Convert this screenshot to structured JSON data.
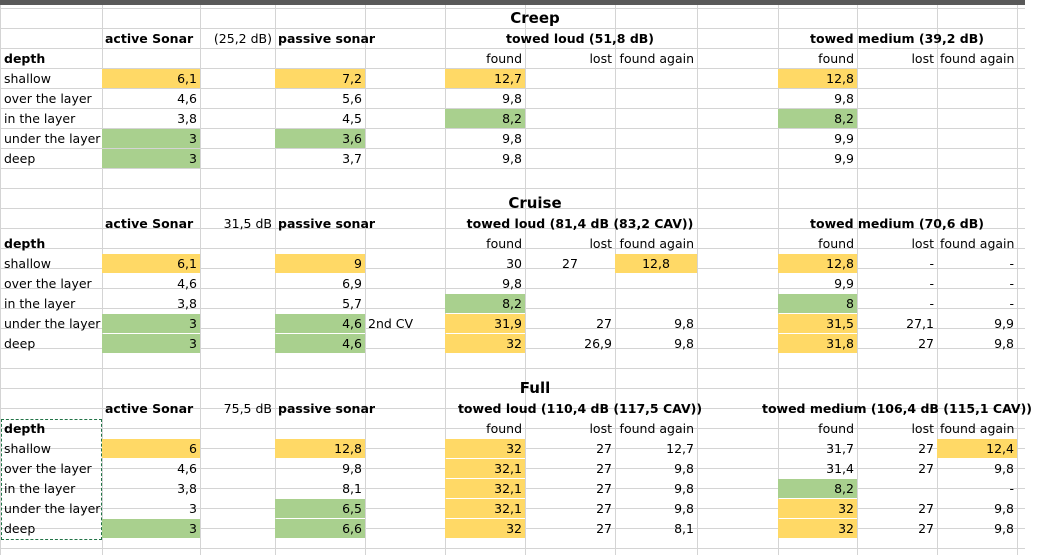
{
  "sheet": {
    "sections": [
      {
        "title": "Creep",
        "header": {
          "active": "active Sonar",
          "passive": "passive sonar",
          "note": "(25,2 dB)",
          "towed_loud": "towed loud (51,8 dB)",
          "towed_medium": "towed medium (39,2 dB)"
        },
        "sub": {
          "depth": "depth",
          "found": "found",
          "lost": "lost",
          "found_again": "found again"
        },
        "rows": [
          {
            "depth": "shallow",
            "active": "6,1",
            "passive": "7,2",
            "note": "",
            "tl_found": "12,7",
            "tl_lost": "",
            "tl_again": "",
            "tm_found": "12,8",
            "tm_lost": "",
            "tm_again": ""
          },
          {
            "depth": "over the layer",
            "active": "4,6",
            "passive": "5,6",
            "note": "",
            "tl_found": "9,8",
            "tl_lost": "",
            "tl_again": "",
            "tm_found": "9,8",
            "tm_lost": "",
            "tm_again": ""
          },
          {
            "depth": "in the layer",
            "active": "3,8",
            "passive": "4,5",
            "note": "",
            "tl_found": "8,2",
            "tl_lost": "",
            "tl_again": "",
            "tm_found": "8,2",
            "tm_lost": "",
            "tm_again": ""
          },
          {
            "depth": "under the layer",
            "active": "3",
            "passive": "3,6",
            "note": "",
            "tl_found": "9,8",
            "tl_lost": "",
            "tl_again": "",
            "tm_found": "9,9",
            "tm_lost": "",
            "tm_again": ""
          },
          {
            "depth": "deep",
            "active": "3",
            "passive": "3,7",
            "note": "",
            "tl_found": "9,8",
            "tl_lost": "",
            "tl_again": "",
            "tm_found": "9,9",
            "tm_lost": "",
            "tm_again": ""
          }
        ]
      },
      {
        "title": "Cruise",
        "header": {
          "active": "active Sonar",
          "passive": "passive sonar",
          "note": "31,5 dB",
          "towed_loud": "towed loud (81,4 dB (83,2 CAV))",
          "towed_medium": "towed medium (70,6 dB)"
        },
        "sub": {
          "depth": "depth",
          "found": "found",
          "lost": "lost",
          "found_again": "found again"
        },
        "rows": [
          {
            "depth": "shallow",
            "active": "6,1",
            "passive": "9",
            "note": "",
            "tl_found": "30",
            "tl_lost": "27",
            "tl_again": "12,8",
            "tm_found": "12,8",
            "tm_lost": "-",
            "tm_again": "-"
          },
          {
            "depth": "over the layer",
            "active": "4,6",
            "passive": "6,9",
            "note": "",
            "tl_found": "9,8",
            "tl_lost": "",
            "tl_again": "",
            "tm_found": "9,9",
            "tm_lost": "-",
            "tm_again": "-"
          },
          {
            "depth": "in the layer",
            "active": "3,8",
            "passive": "5,7",
            "note": "",
            "tl_found": "8,2",
            "tl_lost": "",
            "tl_again": "",
            "tm_found": "8",
            "tm_lost": "-",
            "tm_again": "-"
          },
          {
            "depth": "under the layer",
            "active": "3",
            "passive": "4,6",
            "note": "2nd CV",
            "tl_found": "31,9",
            "tl_lost": "27",
            "tl_again": "9,8",
            "tm_found": "31,5",
            "tm_lost": "27,1",
            "tm_again": "9,9"
          },
          {
            "depth": "deep",
            "active": "3",
            "passive": "4,6",
            "note": "",
            "tl_found": "32",
            "tl_lost": "26,9",
            "tl_again": "9,8",
            "tm_found": "31,8",
            "tm_lost": "27",
            "tm_again": "9,8"
          }
        ]
      },
      {
        "title": "Full",
        "header": {
          "active": "active Sonar",
          "passive": "passive sonar",
          "note": "75,5 dB",
          "towed_loud": "towed loud (110,4 dB (117,5 CAV))",
          "towed_medium": "towed medium (106,4 dB (115,1 CAV))"
        },
        "sub": {
          "depth": "depth",
          "found": "found",
          "lost": "lost",
          "found_again": "found again"
        },
        "rows": [
          {
            "depth": "shallow",
            "active": "6",
            "passive": "12,8",
            "note": "",
            "tl_found": "32",
            "tl_lost": "27",
            "tl_again": "12,7",
            "tm_found": "31,7",
            "tm_lost": "27",
            "tm_again": "12,4"
          },
          {
            "depth": "over the layer",
            "active": "4,6",
            "passive": "9,8",
            "note": "",
            "tl_found": "32,1",
            "tl_lost": "27",
            "tl_again": "9,8",
            "tm_found": "31,4",
            "tm_lost": "27",
            "tm_again": "9,8"
          },
          {
            "depth": "in the layer",
            "active": "3,8",
            "passive": "8,1",
            "note": "",
            "tl_found": "32,1",
            "tl_lost": "27",
            "tl_again": "9,8",
            "tm_found": "8,2",
            "tm_lost": "",
            "tm_again": "-"
          },
          {
            "depth": "under the layer",
            "active": "3",
            "passive": "6,5",
            "note": "",
            "tl_found": "32,1",
            "tl_lost": "27",
            "tl_again": "9,8",
            "tm_found": "32",
            "tm_lost": "27",
            "tm_again": "9,8"
          },
          {
            "depth": "deep",
            "active": "3",
            "passive": "6,6",
            "note": "",
            "tl_found": "32",
            "tl_lost": "27",
            "tl_again": "8,1",
            "tm_found": "32",
            "tm_lost": "27",
            "tm_again": "9,8"
          }
        ]
      }
    ],
    "highlights": [
      {
        "section": 0,
        "row": 0,
        "col": "active",
        "color": "#ffd966"
      },
      {
        "section": 0,
        "row": 0,
        "col": "passive",
        "color": "#ffd966"
      },
      {
        "section": 0,
        "row": 0,
        "col": "tl_found",
        "color": "#ffd966"
      },
      {
        "section": 0,
        "row": 0,
        "col": "tm_found",
        "color": "#ffd966"
      },
      {
        "section": 0,
        "row": 2,
        "col": "tl_found",
        "color": "#a9d08e"
      },
      {
        "section": 0,
        "row": 2,
        "col": "tm_found",
        "color": "#a9d08e"
      },
      {
        "section": 0,
        "row": 3,
        "col": "active",
        "color": "#a9d08e"
      },
      {
        "section": 0,
        "row": 3,
        "col": "passive",
        "color": "#a9d08e"
      },
      {
        "section": 0,
        "row": 4,
        "col": "active",
        "color": "#a9d08e"
      },
      {
        "section": 1,
        "row": 0,
        "col": "active",
        "color": "#ffd966"
      },
      {
        "section": 1,
        "row": 0,
        "col": "passive",
        "color": "#ffd966"
      },
      {
        "section": 1,
        "row": 0,
        "col": "tl_again",
        "color": "#ffd966"
      },
      {
        "section": 1,
        "row": 0,
        "col": "tm_found",
        "color": "#ffd966"
      },
      {
        "section": 1,
        "row": 2,
        "col": "tl_found",
        "color": "#a9d08e"
      },
      {
        "section": 1,
        "row": 2,
        "col": "tm_found",
        "color": "#a9d08e"
      },
      {
        "section": 1,
        "row": 3,
        "col": "active",
        "color": "#a9d08e"
      },
      {
        "section": 1,
        "row": 3,
        "col": "passive",
        "color": "#a9d08e"
      },
      {
        "section": 1,
        "row": 3,
        "col": "tl_found",
        "color": "#ffd966"
      },
      {
        "section": 1,
        "row": 3,
        "col": "tm_found",
        "color": "#ffd966"
      },
      {
        "section": 1,
        "row": 4,
        "col": "active",
        "color": "#a9d08e"
      },
      {
        "section": 1,
        "row": 4,
        "col": "passive",
        "color": "#a9d08e"
      },
      {
        "section": 1,
        "row": 4,
        "col": "tl_found",
        "color": "#ffd966"
      },
      {
        "section": 1,
        "row": 4,
        "col": "tm_found",
        "color": "#ffd966"
      },
      {
        "section": 2,
        "row": 0,
        "col": "active",
        "color": "#ffd966"
      },
      {
        "section": 2,
        "row": 0,
        "col": "passive",
        "color": "#ffd966"
      },
      {
        "section": 2,
        "row": 0,
        "col": "tl_found",
        "color": "#ffd966"
      },
      {
        "section": 2,
        "row": 0,
        "col": "tm_again",
        "color": "#ffd966"
      },
      {
        "section": 2,
        "row": 1,
        "col": "tl_found",
        "color": "#ffd966"
      },
      {
        "section": 2,
        "row": 2,
        "col": "tl_found",
        "color": "#ffd966"
      },
      {
        "section": 2,
        "row": 2,
        "col": "tm_found",
        "color": "#a9d08e"
      },
      {
        "section": 2,
        "row": 3,
        "col": "passive",
        "color": "#a9d08e"
      },
      {
        "section": 2,
        "row": 3,
        "col": "tl_found",
        "color": "#ffd966"
      },
      {
        "section": 2,
        "row": 3,
        "col": "tm_found",
        "color": "#ffd966"
      },
      {
        "section": 2,
        "row": 4,
        "col": "active",
        "color": "#a9d08e"
      },
      {
        "section": 2,
        "row": 4,
        "col": "passive",
        "color": "#a9d08e"
      },
      {
        "section": 2,
        "row": 4,
        "col": "tl_found",
        "color": "#ffd966"
      },
      {
        "section": 2,
        "row": 4,
        "col": "tm_found",
        "color": "#ffd966"
      }
    ]
  }
}
